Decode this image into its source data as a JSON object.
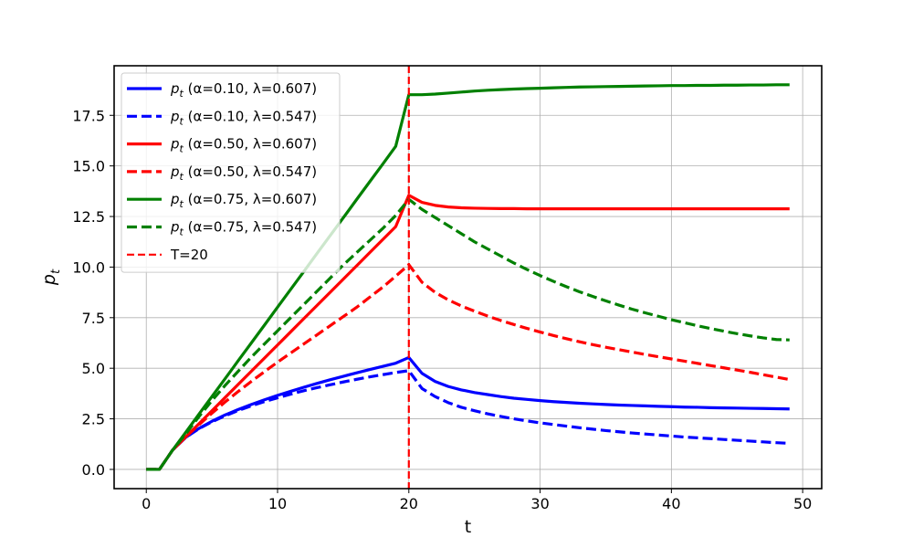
{
  "chart_data": {
    "type": "line",
    "xlabel": "t",
    "ylabel_base": "p",
    "ylabel_sub": "t",
    "xlim": [
      -2.45,
      51.45
    ],
    "ylim": [
      -0.95,
      19.95
    ],
    "xticks": [
      0,
      10,
      20,
      30,
      40,
      50
    ],
    "yticks": [
      0.0,
      2.5,
      5.0,
      7.5,
      10.0,
      12.5,
      15.0,
      17.5
    ],
    "xtick_labels": [
      "0",
      "10",
      "20",
      "30",
      "40",
      "50"
    ],
    "ytick_labels": [
      "0.0",
      "2.5",
      "5.0",
      "7.5",
      "10.0",
      "12.5",
      "15.0",
      "17.5"
    ],
    "grid": true,
    "legend_position": "upper-left",
    "vline": {
      "x": 20,
      "label": "T=20",
      "color": "#ff0000"
    },
    "series": [
      {
        "name": "p_t (α=0.10, λ=0.607)",
        "name_base": "p",
        "name_sub": "t",
        "name_rest": " (α=0.10, λ=0.607)",
        "color": "#0000ff",
        "dash": "solid",
        "x": [
          0,
          1,
          2,
          3,
          4,
          5,
          6,
          7,
          8,
          9,
          10,
          11,
          12,
          13,
          14,
          15,
          16,
          17,
          18,
          19,
          20,
          21,
          22,
          23,
          24,
          25,
          26,
          27,
          28,
          29,
          30,
          31,
          32,
          33,
          34,
          35,
          36,
          37,
          38,
          39,
          40,
          41,
          42,
          43,
          44,
          45,
          46,
          47,
          48,
          49
        ],
        "y": [
          0,
          0,
          0.95,
          1.58,
          2.02,
          2.38,
          2.69,
          2.96,
          3.21,
          3.44,
          3.66,
          3.86,
          4.06,
          4.25,
          4.43,
          4.6,
          4.77,
          4.93,
          5.09,
          5.25,
          5.53,
          4.75,
          4.35,
          4.1,
          3.93,
          3.8,
          3.7,
          3.6,
          3.52,
          3.46,
          3.4,
          3.35,
          3.31,
          3.27,
          3.24,
          3.21,
          3.18,
          3.16,
          3.14,
          3.12,
          3.1,
          3.08,
          3.07,
          3.05,
          3.04,
          3.03,
          3.02,
          3.01,
          3.0,
          2.99
        ]
      },
      {
        "name": "p_t (α=0.10, λ=0.547)",
        "name_base": "p",
        "name_sub": "t",
        "name_rest": " (α=0.10, λ=0.547)",
        "color": "#0000ff",
        "dash": "dashed",
        "x": [
          0,
          1,
          2,
          3,
          4,
          5,
          6,
          7,
          8,
          9,
          10,
          11,
          12,
          13,
          14,
          15,
          16,
          17,
          18,
          19,
          20,
          21,
          22,
          23,
          24,
          25,
          26,
          27,
          28,
          29,
          30,
          31,
          32,
          33,
          34,
          35,
          36,
          37,
          38,
          39,
          40,
          41,
          42,
          43,
          44,
          45,
          46,
          47,
          48,
          49
        ],
        "y": [
          0,
          0,
          0.95,
          1.58,
          2.01,
          2.35,
          2.65,
          2.91,
          3.14,
          3.35,
          3.54,
          3.72,
          3.89,
          4.04,
          4.18,
          4.32,
          4.45,
          4.57,
          4.68,
          4.79,
          4.88,
          4.0,
          3.6,
          3.3,
          3.07,
          2.9,
          2.75,
          2.62,
          2.5,
          2.4,
          2.3,
          2.22,
          2.14,
          2.06,
          1.99,
          1.92,
          1.86,
          1.8,
          1.75,
          1.7,
          1.65,
          1.6,
          1.56,
          1.52,
          1.48,
          1.44,
          1.4,
          1.36,
          1.32,
          1.29
        ]
      },
      {
        "name": "p_t (α=0.50, λ=0.607)",
        "name_base": "p",
        "name_sub": "t",
        "name_rest": " (α=0.50, λ=0.607)",
        "color": "#ff0000",
        "dash": "solid",
        "x": [
          0,
          1,
          2,
          3,
          4,
          5,
          6,
          7,
          8,
          9,
          10,
          11,
          12,
          13,
          14,
          15,
          16,
          17,
          18,
          19,
          20,
          21,
          22,
          23,
          24,
          25,
          26,
          27,
          28,
          29,
          30,
          31,
          32,
          33,
          34,
          35,
          36,
          37,
          38,
          39,
          40,
          41,
          42,
          43,
          44,
          45,
          46,
          47,
          48,
          49
        ],
        "y": [
          0,
          0,
          0.95,
          1.6,
          2.25,
          2.9,
          3.55,
          4.2,
          4.85,
          5.5,
          6.15,
          6.8,
          7.45,
          8.1,
          8.75,
          9.4,
          10.05,
          10.7,
          11.35,
          12.0,
          13.55,
          13.2,
          13.05,
          12.97,
          12.93,
          12.91,
          12.9,
          12.89,
          12.89,
          12.88,
          12.88,
          12.88,
          12.88,
          12.88,
          12.88,
          12.88,
          12.88,
          12.88,
          12.88,
          12.88,
          12.88,
          12.88,
          12.88,
          12.88,
          12.88,
          12.88,
          12.88,
          12.88,
          12.88,
          12.88
        ]
      },
      {
        "name": "p_t (α=0.50, λ=0.547)",
        "name_base": "p",
        "name_sub": "t",
        "name_rest": " (α=0.50, λ=0.547)",
        "color": "#ff0000",
        "dash": "dashed",
        "x": [
          0,
          1,
          2,
          3,
          4,
          5,
          6,
          7,
          8,
          9,
          10,
          11,
          12,
          13,
          14,
          15,
          16,
          17,
          18,
          19,
          20,
          21,
          22,
          23,
          24,
          25,
          26,
          27,
          28,
          29,
          30,
          31,
          32,
          33,
          34,
          35,
          36,
          37,
          38,
          39,
          40,
          41,
          42,
          43,
          44,
          45,
          46,
          47,
          48,
          49
        ],
        "y": [
          0,
          0,
          0.95,
          1.6,
          2.2,
          2.78,
          3.33,
          3.85,
          4.35,
          4.83,
          5.3,
          5.75,
          6.2,
          6.65,
          7.1,
          7.55,
          8.0,
          8.5,
          9.0,
          9.55,
          10.12,
          9.25,
          8.75,
          8.38,
          8.08,
          7.82,
          7.58,
          7.36,
          7.16,
          6.97,
          6.79,
          6.62,
          6.46,
          6.31,
          6.17,
          6.04,
          5.92,
          5.8,
          5.68,
          5.57,
          5.46,
          5.35,
          5.24,
          5.13,
          5.02,
          4.91,
          4.8,
          4.68,
          4.56,
          4.44
        ]
      },
      {
        "name": "p_t (α=0.75, λ=0.607)",
        "name_base": "p",
        "name_sub": "t",
        "name_rest": " (α=0.75, λ=0.607)",
        "color": "#008000",
        "dash": "solid",
        "x": [
          0,
          1,
          2,
          3,
          4,
          5,
          6,
          7,
          8,
          9,
          10,
          11,
          12,
          13,
          14,
          15,
          16,
          17,
          18,
          19,
          20,
          21,
          22,
          23,
          24,
          25,
          26,
          27,
          28,
          29,
          30,
          31,
          32,
          33,
          34,
          35,
          36,
          37,
          38,
          39,
          40,
          41,
          42,
          43,
          44,
          45,
          46,
          47,
          48,
          49
        ],
        "y": [
          0,
          0,
          0.95,
          1.83,
          2.72,
          3.6,
          4.48,
          5.37,
          6.25,
          7.13,
          8.02,
          8.9,
          9.78,
          10.67,
          11.55,
          12.43,
          13.32,
          14.2,
          15.08,
          15.97,
          18.52,
          18.52,
          18.55,
          18.6,
          18.65,
          18.7,
          18.74,
          18.77,
          18.8,
          18.82,
          18.84,
          18.86,
          18.88,
          18.9,
          18.91,
          18.92,
          18.93,
          18.94,
          18.95,
          18.96,
          18.97,
          18.97,
          18.98,
          18.98,
          18.99,
          18.99,
          19.0,
          19.0,
          19.01,
          19.01
        ]
      },
      {
        "name": "p_t (α=0.75, λ=0.547)",
        "name_base": "p",
        "name_sub": "t",
        "name_rest": " (α=0.75, λ=0.547)",
        "color": "#008000",
        "dash": "dashed",
        "x": [
          0,
          1,
          2,
          3,
          4,
          5,
          6,
          7,
          8,
          9,
          10,
          11,
          12,
          13,
          14,
          15,
          16,
          17,
          18,
          19,
          20,
          21,
          22,
          23,
          24,
          25,
          26,
          27,
          28,
          29,
          30,
          31,
          32,
          33,
          34,
          35,
          36,
          37,
          38,
          39,
          40,
          41,
          42,
          43,
          44,
          45,
          46,
          47,
          48,
          49
        ],
        "y": [
          0,
          0,
          0.95,
          1.75,
          2.6,
          3.4,
          4.15,
          4.85,
          5.55,
          6.2,
          6.85,
          7.5,
          8.15,
          8.8,
          9.45,
          10.1,
          10.7,
          11.3,
          11.9,
          12.55,
          13.35,
          12.85,
          12.45,
          12.05,
          11.65,
          11.25,
          10.9,
          10.55,
          10.2,
          9.88,
          9.58,
          9.3,
          9.03,
          8.78,
          8.55,
          8.33,
          8.12,
          7.92,
          7.74,
          7.57,
          7.4,
          7.25,
          7.1,
          6.96,
          6.83,
          6.71,
          6.6,
          6.5,
          6.42,
          6.4
        ]
      }
    ]
  }
}
